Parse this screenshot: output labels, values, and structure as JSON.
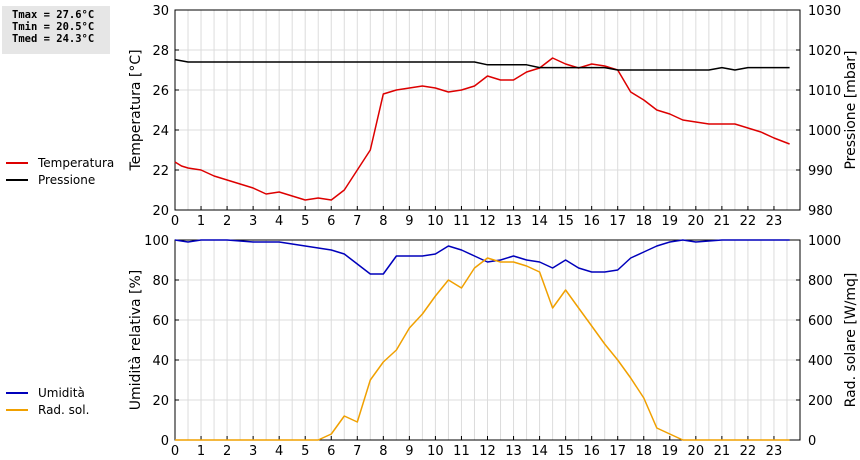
{
  "stats": {
    "tmax": "Tmax = 27.6°C",
    "tmin": "Tmin = 20.5°C",
    "tmed": "Tmed = 24.3°C"
  },
  "chart_data": [
    {
      "type": "line",
      "ylabel": "Temperatura [°C]",
      "y2label": "Pressione [mbar]",
      "xlim": [
        0,
        24
      ],
      "ylim": [
        20,
        30
      ],
      "y2lim": [
        980,
        1030
      ],
      "xticks": [
        "0",
        "1",
        "2",
        "3",
        "4",
        "5",
        "6",
        "7",
        "8",
        "9",
        "10",
        "11",
        "12",
        "13",
        "14",
        "15",
        "16",
        "17",
        "18",
        "19",
        "20",
        "21",
        "22",
        "23"
      ],
      "yticks": [
        "20",
        "22",
        "24",
        "26",
        "28",
        "30"
      ],
      "y2ticks": [
        "980",
        "990",
        "1000",
        "1010",
        "1020",
        "1030"
      ],
      "grid": true,
      "legend_position": "left",
      "series": [
        {
          "name": "Temperatura",
          "axis": "left",
          "color": "#dd0000",
          "x": [
            0,
            0.25,
            0.5,
            1,
            1.5,
            2,
            2.5,
            3,
            3.5,
            4,
            4.5,
            5,
            5.5,
            6,
            6.5,
            7,
            7.5,
            8,
            8.5,
            9,
            9.5,
            10,
            10.5,
            11,
            11.5,
            12,
            12.5,
            13,
            13.5,
            14,
            14.5,
            15,
            15.5,
            16,
            16.5,
            17,
            17.5,
            18,
            18.5,
            19,
            19.5,
            20,
            20.5,
            21,
            21.5,
            22,
            22.5,
            23,
            23.6
          ],
          "y": [
            22.4,
            22.2,
            22.1,
            22.0,
            21.7,
            21.5,
            21.3,
            21.1,
            20.8,
            20.9,
            20.7,
            20.5,
            20.6,
            20.5,
            21.0,
            22.0,
            23.0,
            25.8,
            26.0,
            26.1,
            26.2,
            26.1,
            25.9,
            26.0,
            26.2,
            26.7,
            26.5,
            26.5,
            26.9,
            27.1,
            27.6,
            27.3,
            27.1,
            27.3,
            27.2,
            27.0,
            25.9,
            25.5,
            25.0,
            24.8,
            24.5,
            24.4,
            24.3,
            24.3,
            24.3,
            24.1,
            23.9,
            23.6,
            23.3
          ]
        },
        {
          "name": "Pressione",
          "axis": "right",
          "color": "#000000",
          "x": [
            0,
            0.5,
            1,
            2,
            5,
            8,
            10,
            11.5,
            12,
            13,
            13.5,
            14,
            15,
            16,
            16.5,
            17,
            18,
            20,
            20.5,
            21,
            21.5,
            22,
            22.5,
            23,
            23.6
          ],
          "y": [
            1017.6,
            1017,
            1017,
            1017,
            1017,
            1017,
            1017,
            1017,
            1016.3,
            1016.3,
            1016.3,
            1015.6,
            1015.6,
            1015.6,
            1015.6,
            1015,
            1015,
            1015,
            1015,
            1015.6,
            1015,
            1015.6,
            1015.6,
            1015.6,
            1015.6
          ]
        }
      ]
    },
    {
      "type": "line",
      "ylabel": "Umidità relativa [%]",
      "y2label": "Rad. solare [W/mq]",
      "xlim": [
        0,
        24
      ],
      "ylim": [
        0,
        100
      ],
      "y2lim": [
        0,
        1000
      ],
      "xticks": [
        "0",
        "1",
        "2",
        "3",
        "4",
        "5",
        "6",
        "7",
        "8",
        "9",
        "10",
        "11",
        "12",
        "13",
        "14",
        "15",
        "16",
        "17",
        "18",
        "19",
        "20",
        "21",
        "22",
        "23"
      ],
      "yticks": [
        "0",
        "20",
        "40",
        "60",
        "80",
        "100"
      ],
      "y2ticks": [
        "0",
        "200",
        "400",
        "600",
        "800",
        "1000"
      ],
      "grid": true,
      "legend_position": "left",
      "series": [
        {
          "name": "Umidità",
          "axis": "left",
          "color": "#0000bb",
          "x": [
            0,
            0.5,
            1,
            2,
            3,
            4,
            5,
            6,
            6.5,
            7,
            7.5,
            8,
            8.5,
            9,
            9.5,
            10,
            10.5,
            11,
            11.5,
            12,
            12.5,
            13,
            13.5,
            14,
            14.5,
            15,
            15.5,
            16,
            16.5,
            17,
            17.5,
            18,
            18.5,
            19,
            19.5,
            20,
            21,
            22,
            23,
            23.6
          ],
          "y": [
            100,
            99,
            100,
            100,
            99,
            99,
            97,
            95,
            93,
            88,
            83,
            83,
            92,
            92,
            92,
            93,
            97,
            95,
            92,
            89,
            90,
            92,
            90,
            89,
            86,
            90,
            86,
            84,
            84,
            85,
            91,
            94,
            97,
            99,
            100,
            99,
            100,
            100,
            100,
            100
          ]
        },
        {
          "name": "Rad. sol.",
          "axis": "right",
          "color": "#f0a000",
          "x": [
            0,
            1,
            2,
            3,
            4,
            5,
            5.5,
            6,
            6.5,
            7,
            7.5,
            8,
            8.5,
            9,
            9.5,
            10,
            10.5,
            11,
            11.5,
            12,
            12.5,
            13,
            13.5,
            14,
            14.5,
            15,
            15.5,
            16,
            16.5,
            17,
            17.5,
            18,
            18.5,
            19,
            19.5,
            20,
            21,
            22,
            23,
            23.6
          ],
          "y": [
            0,
            0,
            0,
            0,
            0,
            0,
            0,
            30,
            120,
            90,
            300,
            390,
            450,
            560,
            630,
            720,
            800,
            760,
            860,
            910,
            890,
            890,
            870,
            840,
            660,
            750,
            660,
            570,
            480,
            400,
            310,
            210,
            60,
            30,
            0,
            0,
            0,
            0,
            0,
            0
          ]
        }
      ]
    }
  ]
}
